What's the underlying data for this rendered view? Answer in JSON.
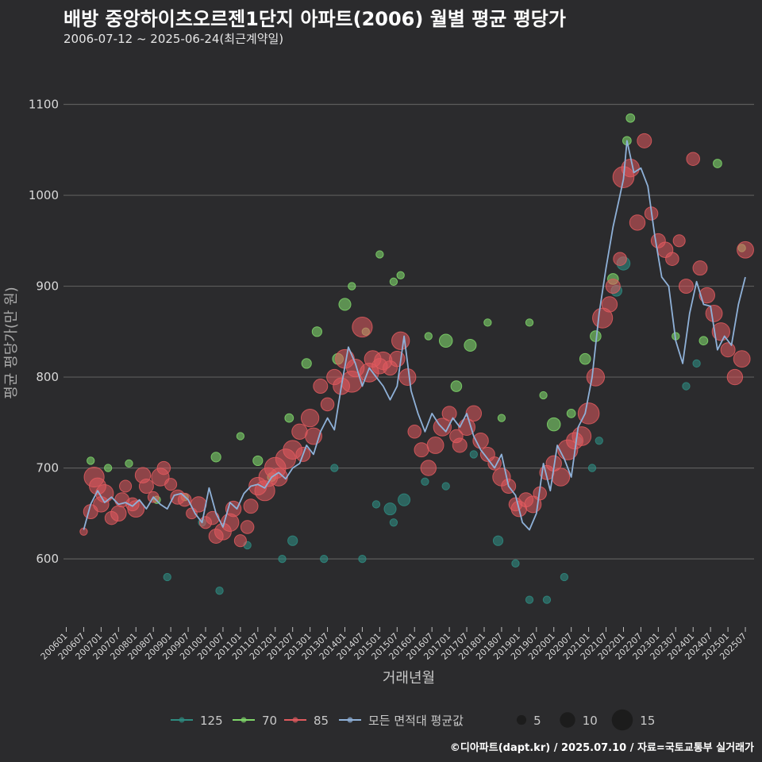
{
  "colors": {
    "background": "#2b2b2d",
    "grid": "#5c5c5c",
    "axis_text": "#d8d8d8",
    "avg_line": "#8fb1d8",
    "s125": "#2e8b80",
    "s70": "#7fd66a",
    "s85": "#e05a5e"
  },
  "chart_data": {
    "type": "scatter",
    "title": "배방 중앙하이츠오르젠1단지 아파트(2006) 월별 평균 평당가",
    "subtitle": "2006-07-12 ~ 2025-06-24(최근계약일)",
    "xlabel": "거래년월",
    "ylabel": "평균 평당가(만 원)",
    "ylim": [
      525,
      1145
    ],
    "xlim": [
      2005.92,
      2025.75
    ],
    "y_ticks": [
      "600",
      "700",
      "800",
      "900",
      "1000",
      "1100"
    ],
    "x_ticks": [
      "200601",
      "200607",
      "200701",
      "200707",
      "200801",
      "200807",
      "200901",
      "200907",
      "201001",
      "201007",
      "201101",
      "201107",
      "201201",
      "201207",
      "201301",
      "201307",
      "201401",
      "201407",
      "201501",
      "201507",
      "201601",
      "201607",
      "201701",
      "201707",
      "201801",
      "201807",
      "201901",
      "201907",
      "202001",
      "202007",
      "202101",
      "202107",
      "202201",
      "202207",
      "202301",
      "202307",
      "202401",
      "202407",
      "202501",
      "202507"
    ],
    "legend": {
      "series": [
        {
          "key": "s125",
          "label": "125"
        },
        {
          "key": "s70",
          "label": "70"
        },
        {
          "key": "s85",
          "label": "85"
        },
        {
          "key": "avg",
          "label": "모든 면적대 평균값"
        }
      ],
      "sizes": [
        {
          "label": "5",
          "n": 5
        },
        {
          "label": "10",
          "n": 10
        },
        {
          "label": "15",
          "n": 15
        }
      ]
    },
    "average_line": {
      "name": "모든 면적대 평균값",
      "x": [
        2006.5,
        2006.7,
        2006.9,
        2007.1,
        2007.3,
        2007.5,
        2007.7,
        2007.9,
        2008.1,
        2008.3,
        2008.5,
        2008.7,
        2008.9,
        2009.1,
        2009.3,
        2009.5,
        2009.7,
        2009.9,
        2010.1,
        2010.3,
        2010.5,
        2010.7,
        2010.9,
        2011.1,
        2011.3,
        2011.5,
        2011.7,
        2011.9,
        2012.1,
        2012.3,
        2012.5,
        2012.7,
        2012.9,
        2013.1,
        2013.3,
        2013.5,
        2013.7,
        2013.9,
        2014.1,
        2014.3,
        2014.5,
        2014.7,
        2014.9,
        2015.1,
        2015.3,
        2015.5,
        2015.7,
        2015.9,
        2016.1,
        2016.3,
        2016.5,
        2016.7,
        2016.9,
        2017.1,
        2017.3,
        2017.5,
        2017.7,
        2017.9,
        2018.1,
        2018.3,
        2018.5,
        2018.7,
        2018.9,
        2019.1,
        2019.3,
        2019.5,
        2019.7,
        2019.9,
        2020.1,
        2020.3,
        2020.5,
        2020.7,
        2020.9,
        2021.1,
        2021.3,
        2021.5,
        2021.7,
        2021.9,
        2022.0,
        2022.1,
        2022.3,
        2022.5,
        2022.7,
        2022.9,
        2023.1,
        2023.3,
        2023.5,
        2023.7,
        2023.9,
        2024.1,
        2024.3,
        2024.5,
        2024.7,
        2024.9,
        2025.1,
        2025.3,
        2025.5
      ],
      "y": [
        632,
        660,
        675,
        662,
        668,
        660,
        662,
        658,
        665,
        655,
        668,
        660,
        655,
        670,
        672,
        665,
        650,
        640,
        678,
        650,
        635,
        662,
        655,
        672,
        680,
        682,
        678,
        690,
        695,
        688,
        700,
        705,
        725,
        715,
        740,
        755,
        742,
        790,
        833,
        815,
        790,
        810,
        800,
        790,
        775,
        790,
        845,
        785,
        760,
        740,
        760,
        748,
        740,
        755,
        745,
        760,
        735,
        720,
        710,
        700,
        715,
        680,
        670,
        640,
        632,
        650,
        705,
        675,
        725,
        710,
        690,
        745,
        760,
        800,
        870,
        920,
        965,
        1000,
        1018,
        1060,
        1025,
        1030,
        1010,
        955,
        910,
        900,
        840,
        815,
        870,
        905,
        880,
        878,
        830,
        845,
        835,
        880,
        910
      ]
    },
    "series": [
      {
        "key": "s85",
        "name": "85",
        "x": [
          2006.5,
          2006.7,
          2006.8,
          2006.9,
          2007.0,
          2007.1,
          2007.3,
          2007.5,
          2007.6,
          2007.7,
          2007.9,
          2008.0,
          2008.2,
          2008.3,
          2008.5,
          2008.7,
          2008.8,
          2009.0,
          2009.2,
          2009.4,
          2009.6,
          2009.8,
          2010.0,
          2010.2,
          2010.3,
          2010.5,
          2010.7,
          2010.8,
          2011.0,
          2011.2,
          2011.3,
          2011.5,
          2011.7,
          2011.8,
          2012.0,
          2012.1,
          2012.3,
          2012.5,
          2012.7,
          2012.8,
          2013.0,
          2013.1,
          2013.3,
          2013.5,
          2013.7,
          2013.9,
          2014.0,
          2014.2,
          2014.3,
          2014.5,
          2014.7,
          2014.8,
          2015.0,
          2015.1,
          2015.3,
          2015.5,
          2015.6,
          2015.8,
          2016.0,
          2016.2,
          2016.4,
          2016.6,
          2016.8,
          2017.0,
          2017.2,
          2017.3,
          2017.5,
          2017.7,
          2017.9,
          2018.1,
          2018.3,
          2018.5,
          2018.7,
          2018.9,
          2019.0,
          2019.2,
          2019.4,
          2019.6,
          2019.8,
          2020.0,
          2020.2,
          2020.4,
          2020.6,
          2020.8,
          2021.0,
          2021.2,
          2021.4,
          2021.6,
          2021.7,
          2021.9,
          2022.0,
          2022.2,
          2022.4,
          2022.6,
          2022.8,
          2023.0,
          2023.2,
          2023.4,
          2023.6,
          2023.8,
          2024.0,
          2024.2,
          2024.4,
          2024.6,
          2024.8,
          2025.0,
          2025.2,
          2025.4,
          2025.5
        ],
        "y": [
          630,
          652,
          690,
          680,
          660,
          672,
          645,
          650,
          665,
          680,
          660,
          655,
          692,
          680,
          668,
          690,
          700,
          682,
          668,
          665,
          650,
          660,
          640,
          645,
          625,
          630,
          640,
          655,
          620,
          635,
          658,
          680,
          675,
          690,
          700,
          690,
          710,
          720,
          740,
          715,
          755,
          735,
          790,
          770,
          800,
          790,
          820,
          795,
          810,
          855,
          805,
          820,
          812,
          818,
          810,
          820,
          840,
          800,
          740,
          720,
          700,
          725,
          745,
          760,
          735,
          725,
          745,
          760,
          730,
          715,
          705,
          690,
          680,
          660,
          655,
          665,
          660,
          672,
          695,
          705,
          690,
          720,
          730,
          735,
          760,
          800,
          865,
          880,
          900,
          930,
          1020,
          1030,
          970,
          1060,
          980,
          950,
          940,
          930,
          950,
          900,
          1040,
          920,
          890,
          870,
          850,
          830,
          800,
          820,
          940
        ],
        "n": [
          3,
          9,
          14,
          11,
          10,
          12,
          8,
          10,
          9,
          7,
          8,
          11,
          10,
          9,
          6,
          12,
          8,
          7,
          9,
          8,
          6,
          10,
          7,
          8,
          9,
          11,
          12,
          10,
          7,
          8,
          9,
          12,
          14,
          13,
          15,
          12,
          14,
          13,
          10,
          9,
          12,
          11,
          9,
          8,
          10,
          11,
          13,
          15,
          12,
          14,
          13,
          11,
          10,
          12,
          9,
          10,
          12,
          11,
          8,
          9,
          10,
          11,
          12,
          9,
          8,
          9,
          11,
          10,
          10,
          9,
          8,
          12,
          9,
          8,
          10,
          9,
          11,
          8,
          9,
          10,
          12,
          14,
          11,
          13,
          15,
          12,
          14,
          10,
          9,
          8,
          15,
          12,
          10,
          9,
          8,
          9,
          10,
          8,
          7,
          9,
          8,
          9,
          10,
          11,
          12,
          9,
          10,
          11,
          11
        ]
      },
      {
        "key": "s70",
        "name": "70",
        "x": [
          2006.7,
          2007.2,
          2007.8,
          2008.6,
          2009.4,
          2010.3,
          2011.0,
          2011.5,
          2011.9,
          2012.4,
          2012.9,
          2013.2,
          2013.8,
          2014.0,
          2014.2,
          2014.6,
          2015.0,
          2015.4,
          2015.6,
          2016.4,
          2016.9,
          2017.2,
          2017.6,
          2018.1,
          2018.5,
          2019.3,
          2019.7,
          2020.0,
          2020.5,
          2020.9,
          2021.2,
          2021.7,
          2022.1,
          2022.2,
          2023.5,
          2024.3,
          2024.7,
          2025.4
        ],
        "y": [
          708,
          700,
          705,
          665,
          668,
          712,
          735,
          708,
          690,
          755,
          815,
          850,
          820,
          880,
          900,
          850,
          935,
          905,
          912,
          845,
          840,
          790,
          835,
          860,
          755,
          860,
          780,
          748,
          760,
          820,
          845,
          908,
          1060,
          1085,
          845,
          840,
          1035,
          942
        ],
        "n": [
          3,
          3,
          3,
          3,
          3,
          5,
          3,
          5,
          4,
          4,
          5,
          5,
          6,
          7,
          3,
          3,
          3,
          3,
          3,
          3,
          8,
          6,
          7,
          3,
          3,
          3,
          3,
          8,
          4,
          6,
          6,
          6,
          4,
          4,
          3,
          4,
          4,
          3
        ]
      },
      {
        "key": "s125",
        "name": "125",
        "x": [
          2008.9,
          2009.9,
          2010.4,
          2011.2,
          2012.2,
          2012.5,
          2013.4,
          2013.7,
          2014.5,
          2014.9,
          2015.3,
          2015.4,
          2015.7,
          2016.3,
          2016.9,
          2017.7,
          2018.4,
          2018.9,
          2019.3,
          2019.8,
          2020.3,
          2020.7,
          2021.1,
          2021.3,
          2021.8,
          2022.0,
          2023.8,
          2024.1
        ],
        "y": [
          580,
          640,
          565,
          615,
          600,
          620,
          600,
          700,
          600,
          660,
          655,
          640,
          665,
          685,
          680,
          715,
          620,
          595,
          555,
          555,
          580,
          730,
          700,
          730,
          895,
          925,
          790,
          815
        ],
        "n": [
          3,
          3,
          3,
          3,
          3,
          5,
          3,
          3,
          3,
          3,
          7,
          3,
          7,
          3,
          3,
          3,
          5,
          3,
          3,
          3,
          3,
          3,
          3,
          3,
          6,
          8,
          3,
          3
        ]
      }
    ]
  }
}
